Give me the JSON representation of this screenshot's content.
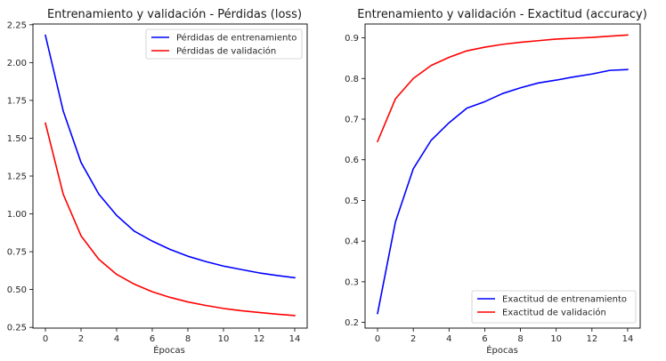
{
  "chart_data": [
    {
      "type": "line",
      "title": "Entrenamiento y validación - Pérdidas (loss)",
      "xlabel": "Épocas",
      "ylabel": "",
      "xlim": [
        -0.7,
        14.7
      ],
      "ylim": [
        0.245,
        2.255
      ],
      "xticks": [
        0,
        2,
        4,
        6,
        8,
        10,
        12,
        14
      ],
      "xtick_labels": [
        "0",
        "2",
        "4",
        "6",
        "8",
        "10",
        "12",
        "14"
      ],
      "yticks": [
        0.25,
        0.5,
        0.75,
        1.0,
        1.25,
        1.5,
        1.75,
        2.0,
        2.25
      ],
      "ytick_labels": [
        "0.25",
        "0.50",
        "0.75",
        "1.00",
        "1.25",
        "1.50",
        "1.75",
        "2.00",
        "2.25"
      ],
      "grid": false,
      "legend_position": "top-right",
      "x": [
        0,
        1,
        2,
        3,
        4,
        5,
        6,
        7,
        8,
        9,
        10,
        11,
        12,
        13,
        14
      ],
      "series": [
        {
          "name": "Pérdidas de entrenamiento",
          "color": "#0000ff",
          "values": [
            2.18,
            1.68,
            1.34,
            1.13,
            0.99,
            0.885,
            0.82,
            0.765,
            0.72,
            0.685,
            0.655,
            0.632,
            0.61,
            0.593,
            0.578
          ]
        },
        {
          "name": "Pérdidas de validación",
          "color": "#ff0000",
          "values": [
            1.6,
            1.13,
            0.855,
            0.7,
            0.6,
            0.535,
            0.485,
            0.448,
            0.418,
            0.395,
            0.375,
            0.36,
            0.348,
            0.337,
            0.328
          ]
        }
      ]
    },
    {
      "type": "line",
      "title": "Entrenamiento y validación - Exactitud (accuracy)",
      "xlabel": "Épocas",
      "ylabel": "",
      "xlim": [
        -0.7,
        14.7
      ],
      "ylim": [
        0.186,
        0.934
      ],
      "xticks": [
        0,
        2,
        4,
        6,
        8,
        10,
        12,
        14
      ],
      "xtick_labels": [
        "0",
        "2",
        "4",
        "6",
        "8",
        "10",
        "12",
        "14"
      ],
      "yticks": [
        0.2,
        0.3,
        0.4,
        0.5,
        0.6,
        0.7,
        0.8,
        0.9
      ],
      "ytick_labels": [
        "0.2",
        "0.3",
        "0.4",
        "0.5",
        "0.6",
        "0.7",
        "0.8",
        "0.9"
      ],
      "grid": false,
      "legend_position": "bottom-right",
      "x": [
        0,
        1,
        2,
        3,
        4,
        5,
        6,
        7,
        8,
        9,
        10,
        11,
        12,
        13,
        14
      ],
      "series": [
        {
          "name": "Exactitud de entrenamiento",
          "color": "#0000ff",
          "values": [
            0.222,
            0.447,
            0.578,
            0.648,
            0.691,
            0.727,
            0.743,
            0.763,
            0.777,
            0.789,
            0.796,
            0.804,
            0.811,
            0.82,
            0.822
          ]
        },
        {
          "name": "Exactitud de validación",
          "color": "#ff0000",
          "values": [
            0.645,
            0.75,
            0.8,
            0.832,
            0.852,
            0.868,
            0.877,
            0.884,
            0.889,
            0.893,
            0.897,
            0.899,
            0.901,
            0.904,
            0.907
          ]
        }
      ]
    }
  ]
}
